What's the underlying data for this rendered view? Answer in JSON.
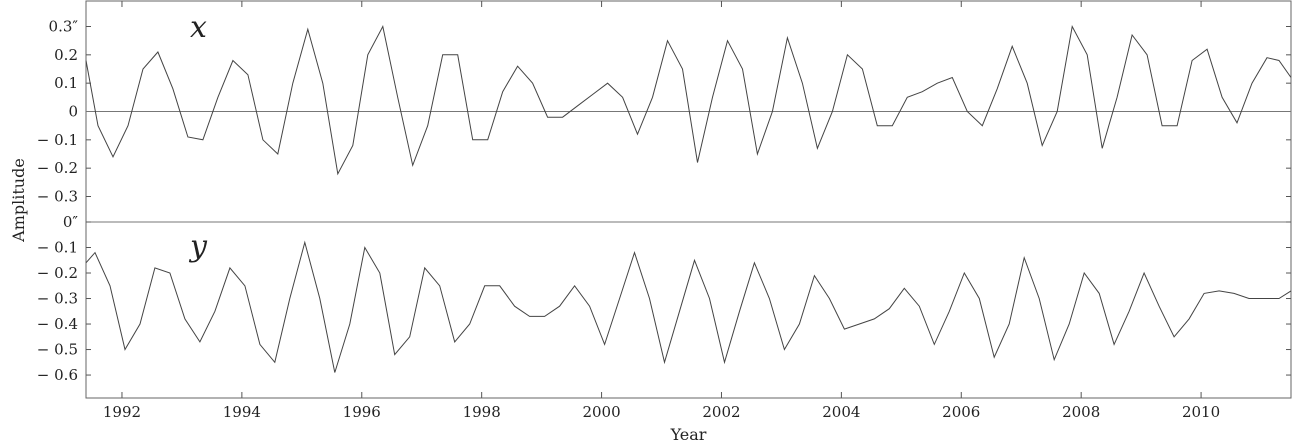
{
  "chart_data": {
    "type": "line",
    "xlabel": "Year",
    "ylabel": "Amplitude",
    "xlim": [
      1991.4,
      2011.5
    ],
    "x_ticks": [
      1992,
      1994,
      1996,
      1998,
      2000,
      2002,
      2004,
      2006,
      2008,
      2010
    ],
    "x_tick_labels": [
      "1992",
      "1994",
      "1996",
      "1998",
      "2000",
      "2002",
      "2004",
      "2006",
      "2008",
      "2010"
    ],
    "panels": [
      {
        "label": "x",
        "ylim": [
          -0.39,
          0.39
        ],
        "y_ticks": [
          0.3,
          0.2,
          0.1,
          0,
          -0.1,
          -0.2,
          -0.3
        ],
        "y_tick_labels": [
          "0.3″",
          "0.2",
          "0.1",
          "0",
          "− 0.1",
          "− 0.2",
          "− 0.3"
        ],
        "zero_line": true,
        "series": [
          {
            "x": [
              1991.4,
              1991.6,
              1991.85,
              1992.1,
              1992.35,
              1992.6,
              1992.85,
              1993.1,
              1993.35,
              1993.6,
              1993.85,
              1994.1,
              1994.35,
              1994.6,
              1994.85,
              1995.1,
              1995.35,
              1995.6,
              1995.85,
              1996.1,
              1996.35,
              1996.6,
              1996.85,
              1997.1,
              1997.35,
              1997.6,
              1997.85,
              1998.1,
              1998.35,
              1998.6,
              1998.85,
              1999.1,
              1999.35,
              1999.6,
              1999.85,
              2000.1,
              2000.35,
              2000.6,
              2000.85,
              2001.1,
              2001.35,
              2001.6,
              2001.85,
              2002.1,
              2002.35,
              2002.6,
              2002.85,
              2003.1,
              2003.35,
              2003.6,
              2003.85,
              2004.1,
              2004.35,
              2004.6,
              2004.85,
              2005.1,
              2005.35,
              2005.6,
              2005.85,
              2006.1,
              2006.35,
              2006.6,
              2006.85,
              2007.1,
              2007.35,
              2007.6,
              2007.85,
              2008.1,
              2008.35,
              2008.6,
              2008.85,
              2009.1,
              2009.35,
              2009.6,
              2009.85,
              2010.1,
              2010.35,
              2010.6,
              2010.85,
              2011.1,
              2011.3,
              2011.5
            ],
            "y": [
              0.18,
              -0.05,
              -0.16,
              -0.05,
              0.15,
              0.21,
              0.08,
              -0.09,
              -0.1,
              0.05,
              0.18,
              0.13,
              -0.1,
              -0.15,
              0.1,
              0.29,
              0.1,
              -0.22,
              -0.12,
              0.2,
              0.3,
              0.05,
              -0.19,
              -0.05,
              0.2,
              0.2,
              -0.1,
              -0.1,
              0.07,
              0.16,
              0.1,
              -0.02,
              -0.02,
              0.02,
              0.06,
              0.1,
              0.05,
              -0.08,
              0.05,
              0.25,
              0.15,
              -0.18,
              0.05,
              0.25,
              0.15,
              -0.15,
              0.0,
              0.26,
              0.1,
              -0.13,
              0.0,
              0.2,
              0.15,
              -0.05,
              -0.05,
              0.05,
              0.07,
              0.1,
              0.12,
              0.0,
              -0.05,
              0.08,
              0.23,
              0.1,
              -0.12,
              0.0,
              0.3,
              0.2,
              -0.13,
              0.05,
              0.27,
              0.2,
              -0.05,
              -0.05,
              0.18,
              0.22,
              0.05,
              -0.04,
              0.1,
              0.19,
              0.18,
              0.12
            ]
          }
        ]
      },
      {
        "label": "y",
        "ylim": [
          -0.69,
          0.0
        ],
        "y_ticks": [
          0,
          -0.1,
          -0.2,
          -0.3,
          -0.4,
          -0.5,
          -0.6
        ],
        "y_tick_labels": [
          "0″",
          "− 0.1",
          "− 0.2",
          "− 0.3",
          "− 0.4",
          "− 0.5",
          "− 0.6"
        ],
        "zero_line": true,
        "series": [
          {
            "x": [
              1991.4,
              1991.55,
              1991.8,
              1992.05,
              1992.3,
              1992.55,
              1992.8,
              1993.05,
              1993.3,
              1993.55,
              1993.8,
              1994.05,
              1994.3,
              1994.55,
              1994.8,
              1995.05,
              1995.3,
              1995.55,
              1995.8,
              1996.05,
              1996.3,
              1996.55,
              1996.8,
              1997.05,
              1997.3,
              1997.55,
              1997.8,
              1998.05,
              1998.3,
              1998.55,
              1998.8,
              1999.05,
              1999.3,
              1999.55,
              1999.8,
              2000.05,
              2000.3,
              2000.55,
              2000.8,
              2001.05,
              2001.3,
              2001.55,
              2001.8,
              2002.05,
              2002.3,
              2002.55,
              2002.8,
              2003.05,
              2003.3,
              2003.55,
              2003.8,
              2004.05,
              2004.3,
              2004.55,
              2004.8,
              2005.05,
              2005.3,
              2005.55,
              2005.8,
              2006.05,
              2006.3,
              2006.55,
              2006.8,
              2007.05,
              2007.3,
              2007.55,
              2007.8,
              2008.05,
              2008.3,
              2008.55,
              2008.8,
              2009.05,
              2009.3,
              2009.55,
              2009.8,
              2010.05,
              2010.3,
              2010.55,
              2010.8,
              2011.05,
              2011.3,
              2011.5
            ],
            "y": [
              -0.16,
              -0.12,
              -0.25,
              -0.5,
              -0.4,
              -0.18,
              -0.2,
              -0.38,
              -0.47,
              -0.35,
              -0.18,
              -0.25,
              -0.48,
              -0.55,
              -0.3,
              -0.08,
              -0.3,
              -0.59,
              -0.4,
              -0.1,
              -0.2,
              -0.52,
              -0.45,
              -0.18,
              -0.25,
              -0.47,
              -0.4,
              -0.25,
              -0.25,
              -0.33,
              -0.37,
              -0.37,
              -0.33,
              -0.25,
              -0.33,
              -0.48,
              -0.3,
              -0.12,
              -0.3,
              -0.55,
              -0.35,
              -0.15,
              -0.3,
              -0.55,
              -0.35,
              -0.16,
              -0.3,
              -0.5,
              -0.4,
              -0.21,
              -0.3,
              -0.42,
              -0.4,
              -0.38,
              -0.34,
              -0.26,
              -0.33,
              -0.48,
              -0.35,
              -0.2,
              -0.3,
              -0.53,
              -0.4,
              -0.14,
              -0.3,
              -0.54,
              -0.4,
              -0.2,
              -0.28,
              -0.48,
              -0.35,
              -0.2,
              -0.33,
              -0.45,
              -0.38,
              -0.28,
              -0.27,
              -0.28,
              -0.3,
              -0.3,
              -0.3,
              -0.27
            ]
          }
        ]
      }
    ]
  }
}
